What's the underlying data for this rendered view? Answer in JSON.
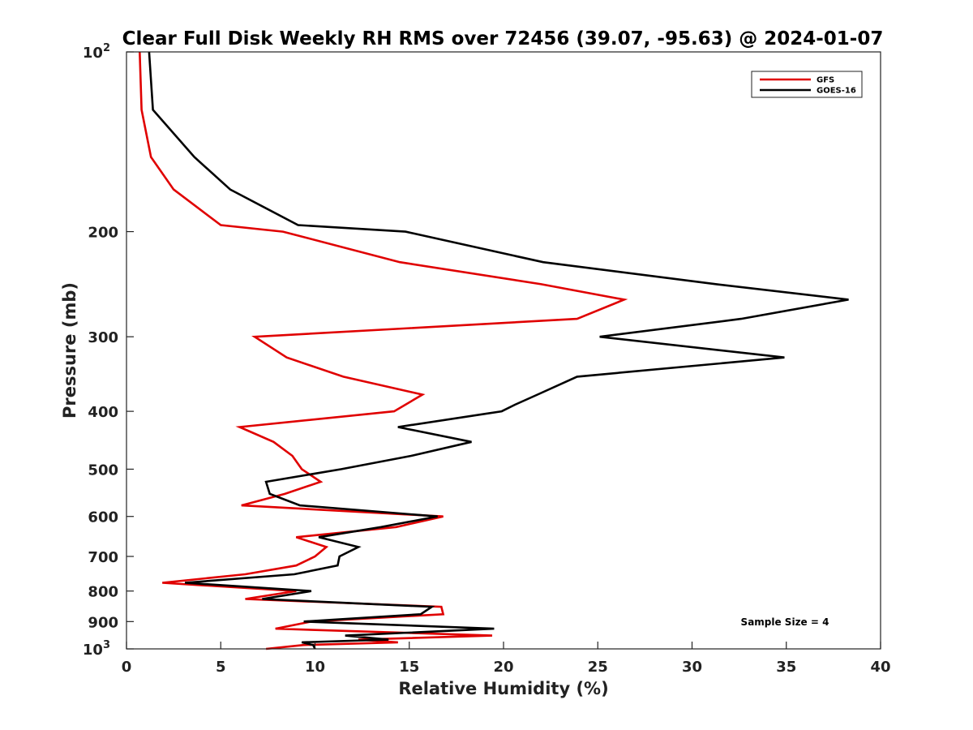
{
  "chart_data": {
    "type": "line",
    "title": "Clear Full Disk Weekly RH RMS over 72456 (39.07, -95.63) @ 2024-01-07",
    "xlabel": "Relative Humidity (%)",
    "ylabel": "Pressure (mb)",
    "xlim": [
      0,
      40
    ],
    "ylim": [
      100,
      1000
    ],
    "yscale": "log",
    "y_inverted": true,
    "grid": false,
    "legend_position": "top-right",
    "x_ticks": [
      {
        "value": 0,
        "label": "0"
      },
      {
        "value": 5,
        "label": "5"
      },
      {
        "value": 10,
        "label": "10"
      },
      {
        "value": 15,
        "label": "15"
      },
      {
        "value": 20,
        "label": "20"
      },
      {
        "value": 25,
        "label": "25"
      },
      {
        "value": 30,
        "label": "30"
      },
      {
        "value": 35,
        "label": "35"
      },
      {
        "value": 40,
        "label": "40"
      }
    ],
    "y_ticks": [
      {
        "value": 100,
        "label": "10",
        "sup": "2"
      },
      {
        "value": 200,
        "label": "200",
        "sup": ""
      },
      {
        "value": 300,
        "label": "300",
        "sup": ""
      },
      {
        "value": 400,
        "label": "400",
        "sup": ""
      },
      {
        "value": 500,
        "label": "500",
        "sup": ""
      },
      {
        "value": 600,
        "label": "600",
        "sup": ""
      },
      {
        "value": 700,
        "label": "700",
        "sup": ""
      },
      {
        "value": 800,
        "label": "800",
        "sup": ""
      },
      {
        "value": 900,
        "label": "900",
        "sup": ""
      },
      {
        "value": 1000,
        "label": "10",
        "sup": "3"
      }
    ],
    "annotation": "Sample Size = 4",
    "series": [
      {
        "name": "GFS",
        "color": "#e00000",
        "points": [
          [
            0.7,
            100
          ],
          [
            0.8,
            125
          ],
          [
            1.3,
            150
          ],
          [
            2.5,
            170
          ],
          [
            5.0,
            195
          ],
          [
            8.3,
            200
          ],
          [
            14.5,
            225
          ],
          [
            22.0,
            245
          ],
          [
            26.4,
            260
          ],
          [
            23.9,
            280
          ],
          [
            6.8,
            300
          ],
          [
            8.5,
            325
          ],
          [
            11.5,
            350
          ],
          [
            15.7,
            375
          ],
          [
            14.2,
            400
          ],
          [
            6.0,
            425
          ],
          [
            7.8,
            450
          ],
          [
            8.8,
            475
          ],
          [
            9.3,
            500
          ],
          [
            10.3,
            525
          ],
          [
            8.4,
            550
          ],
          [
            6.1,
            575
          ],
          [
            16.8,
            600
          ],
          [
            14.3,
            625
          ],
          [
            9.0,
            650
          ],
          [
            10.6,
            675
          ],
          [
            10.0,
            700
          ],
          [
            9.0,
            725
          ],
          [
            6.3,
            750
          ],
          [
            1.9,
            775
          ],
          [
            9.0,
            800
          ],
          [
            6.3,
            825
          ],
          [
            16.7,
            850
          ],
          [
            16.8,
            875
          ],
          [
            9.8,
            900
          ],
          [
            7.9,
            925
          ],
          [
            19.4,
            950
          ],
          [
            12.3,
            965
          ],
          [
            14.4,
            975
          ],
          [
            9.4,
            985
          ],
          [
            7.4,
            1000
          ]
        ]
      },
      {
        "name": "GOES-16",
        "color": "#000000",
        "points": [
          [
            1.2,
            100
          ],
          [
            1.4,
            125
          ],
          [
            3.6,
            150
          ],
          [
            5.5,
            170
          ],
          [
            9.1,
            195
          ],
          [
            14.8,
            200
          ],
          [
            22.1,
            225
          ],
          [
            31.3,
            245
          ],
          [
            38.3,
            260
          ],
          [
            32.6,
            280
          ],
          [
            25.1,
            300
          ],
          [
            34.9,
            325
          ],
          [
            23.9,
            350
          ],
          [
            21.8,
            375
          ],
          [
            20.6,
            390
          ],
          [
            19.9,
            400
          ],
          [
            14.4,
            425
          ],
          [
            18.3,
            450
          ],
          [
            15.1,
            475
          ],
          [
            11.4,
            500
          ],
          [
            7.4,
            525
          ],
          [
            7.6,
            550
          ],
          [
            9.2,
            575
          ],
          [
            16.5,
            600
          ],
          [
            13.5,
            625
          ],
          [
            10.2,
            650
          ],
          [
            12.3,
            675
          ],
          [
            11.3,
            700
          ],
          [
            11.2,
            725
          ],
          [
            8.9,
            750
          ],
          [
            3.1,
            775
          ],
          [
            9.8,
            800
          ],
          [
            7.2,
            825
          ],
          [
            16.2,
            850
          ],
          [
            15.6,
            875
          ],
          [
            9.4,
            900
          ],
          [
            19.5,
            925
          ],
          [
            11.6,
            950
          ],
          [
            13.9,
            965
          ],
          [
            9.3,
            975
          ],
          [
            9.9,
            985
          ],
          [
            10.0,
            1000
          ]
        ]
      }
    ]
  }
}
